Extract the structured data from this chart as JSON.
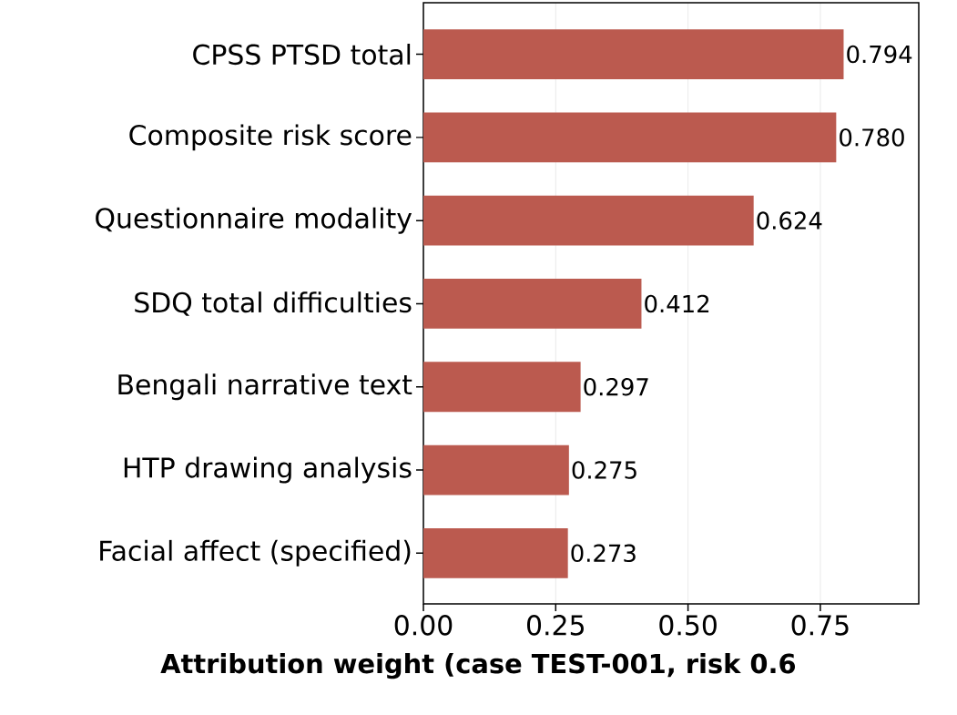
{
  "chart_data": {
    "type": "bar",
    "orientation": "horizontal",
    "categories": [
      "CPSS PTSD total",
      "Composite risk score",
      "Questionnaire modality",
      "SDQ total difficulties",
      "Bengali narrative text",
      "HTP drawing analysis",
      "Facial affect (specified)"
    ],
    "values": [
      0.794,
      0.78,
      0.624,
      0.412,
      0.297,
      0.275,
      0.273
    ],
    "color": "#bb5a4f",
    "xlabel": "Attribution weight (case TEST-001, risk 0.6",
    "xlim": [
      0,
      0.936
    ],
    "xticks": [
      {
        "value": 0,
        "label": "0.00"
      },
      {
        "value": 0.25,
        "label": "0.25"
      },
      {
        "value": 0.5,
        "label": "0.50"
      },
      {
        "value": 0.75,
        "label": "0.75"
      }
    ],
    "grid": "x",
    "value_labels": [
      "0.794",
      "0.780",
      "0.624",
      "0.412",
      "0.297",
      "0.275",
      "0.273"
    ]
  }
}
